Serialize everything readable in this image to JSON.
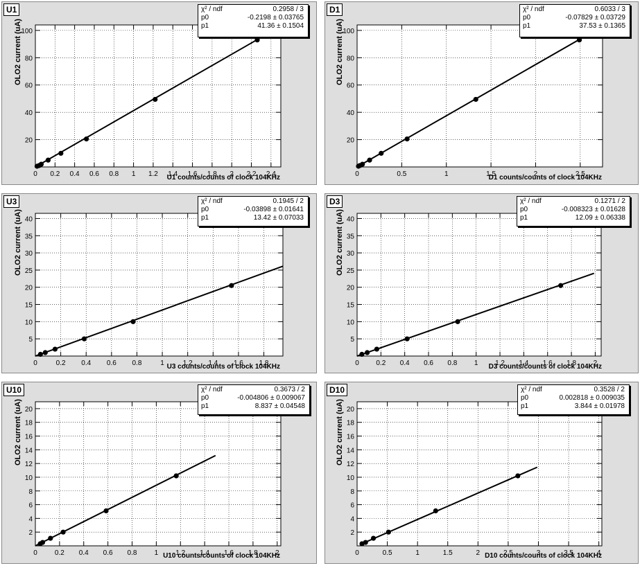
{
  "chart_data": [
    {
      "type": "scatter",
      "name": "U1",
      "ylabel": "OLO2 current (uA)",
      "xlabel": "U1 counts/counts of clock 104KHz",
      "xlim": [
        0,
        2.5
      ],
      "ylim": [
        0,
        104
      ],
      "xticks": [
        "0",
        "0.2",
        "0.4",
        "0.6",
        "0.8",
        "1",
        "1.2",
        "1.4",
        "1.6",
        "1.8",
        "2",
        "2.2",
        "2.4"
      ],
      "xtick_values": [
        0,
        0.2,
        0.4,
        0.6,
        0.8,
        1,
        1.2,
        1.4,
        1.6,
        1.8,
        2,
        2.2,
        2.4
      ],
      "yticks": [
        "20",
        "40",
        "60",
        "80",
        "100"
      ],
      "ytick_values": [
        20,
        40,
        60,
        80,
        100
      ],
      "x": [
        0.017,
        0.037,
        0.06,
        0.13,
        0.26,
        0.52,
        1.22,
        2.26
      ],
      "y": [
        0.5,
        1,
        2,
        5,
        10,
        20.5,
        49.5,
        93
      ],
      "fit": {
        "p0": -0.2198,
        "p1": 41.36,
        "x_range": [
          0,
          2.26
        ]
      },
      "stats": {
        "chi2_label": "χ² / ndf",
        "chi2": "0.2958 / 3",
        "p0_label": "p0",
        "p0": "-0.2198 ± 0.03765",
        "p1_label": "p1",
        "p1": "41.36 ± 0.1504"
      },
      "grid": true
    },
    {
      "type": "scatter",
      "name": "D1",
      "ylabel": "OLO2 current (uA)",
      "xlabel": "D1 counts/counts of clock 104KHz",
      "xlim": [
        0,
        2.75
      ],
      "ylim": [
        0,
        104
      ],
      "xticks": [
        "0",
        "0.5",
        "1",
        "1.5",
        "2",
        "2.5"
      ],
      "xtick_values": [
        0,
        0.5,
        1,
        1.5,
        2,
        2.5
      ],
      "yticks": [
        "20",
        "40",
        "60",
        "80",
        "100"
      ],
      "ytick_values": [
        20,
        40,
        60,
        80,
        100
      ],
      "x": [
        0.015,
        0.03,
        0.06,
        0.14,
        0.27,
        0.56,
        1.33,
        2.49
      ],
      "y": [
        0.5,
        1,
        2,
        5,
        10,
        20.5,
        49.5,
        93
      ],
      "fit": {
        "p0": -0.07829,
        "p1": 37.53,
        "x_range": [
          0,
          2.49
        ]
      },
      "stats": {
        "chi2_label": "χ² / ndf",
        "chi2": "0.6033 / 3",
        "p0_label": "p0",
        "p0": "-0.07829 ± 0.03729",
        "p1_label": "p1",
        "p1": "37.53 ± 0.1365"
      },
      "grid": true
    },
    {
      "type": "scatter",
      "name": "U3",
      "ylabel": "OLO2 current (uA)",
      "xlabel": "U3 counts/counts of clock 104KHz",
      "xlim": [
        0,
        1.95
      ],
      "ylim": [
        0,
        41.5
      ],
      "xticks": [
        "0",
        "0.2",
        "0.4",
        "0.6",
        "0.8",
        "1",
        "1.2",
        "1.4",
        "1.6",
        "1.8"
      ],
      "xtick_values": [
        0,
        0.2,
        0.4,
        0.6,
        0.8,
        1,
        1.2,
        1.4,
        1.6,
        1.8
      ],
      "yticks": [
        "5",
        "10",
        "15",
        "20",
        "25",
        "30",
        "35",
        "40"
      ],
      "ytick_values": [
        5,
        10,
        15,
        20,
        25,
        30,
        35,
        40
      ],
      "x": [
        0.04,
        0.078,
        0.155,
        0.385,
        0.77,
        1.545
      ],
      "y": [
        0.5,
        1,
        2,
        5,
        10,
        20.5
      ],
      "fit": {
        "p0": -0.03898,
        "p1": 13.42,
        "x_range": [
          0,
          1.95
        ]
      },
      "stats": {
        "chi2_label": "χ² / ndf",
        "chi2": "0.1945 / 2",
        "p0_label": "p0",
        "p0": "-0.03898 ± 0.01641",
        "p1_label": "p1",
        "p1": "13.42 ± 0.07033"
      },
      "grid": true
    },
    {
      "type": "scatter",
      "name": "D3",
      "ylabel": "OLO2 current (uA)",
      "xlabel": "D3 counts/counts of clock 104KHz",
      "xlim": [
        0,
        2.05
      ],
      "ylim": [
        0,
        41.5
      ],
      "xticks": [
        "0",
        "0.2",
        "0.4",
        "0.6",
        "0.8",
        "1",
        "1.2",
        "1.4",
        "1.6",
        "1.8",
        "2"
      ],
      "xtick_values": [
        0,
        0.2,
        0.4,
        0.6,
        0.8,
        1,
        1.2,
        1.4,
        1.6,
        1.8,
        2
      ],
      "yticks": [
        "5",
        "10",
        "15",
        "20",
        "25",
        "30",
        "35",
        "40"
      ],
      "ytick_values": [
        5,
        10,
        15,
        20,
        25,
        30,
        35,
        40
      ],
      "x": [
        0.04,
        0.085,
        0.165,
        0.42,
        0.845,
        1.71
      ],
      "y": [
        0.5,
        1,
        2,
        5,
        10,
        20.5
      ],
      "fit": {
        "p0": -0.008323,
        "p1": 12.09,
        "x_range": [
          0,
          1.99
        ]
      },
      "stats": {
        "chi2_label": "χ² / ndf",
        "chi2": "0.1271 / 2",
        "p0_label": "p0",
        "p0": "-0.008323 ± 0.01628",
        "p1_label": "p1",
        "p1": "12.09 ± 0.06338"
      },
      "grid": true
    },
    {
      "type": "scatter",
      "name": "U10",
      "ylabel": "OLO2 current (uA)",
      "xlabel": "U10 counts/counts of clock 104KHz",
      "xlim": [
        0,
        2.03
      ],
      "ylim": [
        0,
        21
      ],
      "xticks": [
        "0",
        "0.2",
        "0.4",
        "0.6",
        "0.8",
        "1",
        "1.2",
        "1.4",
        "1.6",
        "1.8",
        "2"
      ],
      "xtick_values": [
        0,
        0.2,
        0.4,
        0.6,
        0.8,
        1,
        1.2,
        1.4,
        1.6,
        1.8,
        2
      ],
      "yticks": [
        "2",
        "4",
        "6",
        "8",
        "10",
        "12",
        "14",
        "16",
        "18",
        "20"
      ],
      "ytick_values": [
        2,
        4,
        6,
        8,
        10,
        12,
        14,
        16,
        18,
        20
      ],
      "x": [
        0.04,
        0.06,
        0.125,
        0.23,
        0.585,
        1.165
      ],
      "y": [
        0.3,
        0.5,
        1.1,
        2,
        5.1,
        10.2
      ],
      "fit": {
        "p0": -0.004806,
        "p1": 8.837,
        "x_range": [
          0,
          1.49
        ]
      },
      "stats": {
        "chi2_label": "χ² / ndf",
        "chi2": "0.3673 / 2",
        "p0_label": "p0",
        "p0": "-0.004806 ± 0.009067",
        "p1_label": "p1",
        "p1": "8.837 ± 0.04548"
      },
      "grid": true
    },
    {
      "type": "scatter",
      "name": "D10",
      "ylabel": "OLO2 current (uA)",
      "xlabel": "D10 counts/counts of clock 104KHz",
      "xlim": [
        0,
        4.05
      ],
      "ylim": [
        0,
        21
      ],
      "xticks": [
        "0",
        "0.5",
        "1",
        "1.5",
        "2",
        "2.5",
        "3",
        "3.5",
        "4"
      ],
      "xtick_values": [
        0,
        0.5,
        1,
        1.5,
        2,
        2.5,
        3,
        3.5,
        4
      ],
      "yticks": [
        "2",
        "4",
        "6",
        "8",
        "10",
        "12",
        "14",
        "16",
        "18",
        "20"
      ],
      "ytick_values": [
        2,
        4,
        6,
        8,
        10,
        12,
        14,
        16,
        18,
        20
      ],
      "x": [
        0.08,
        0.14,
        0.27,
        0.52,
        1.3,
        2.66
      ],
      "y": [
        0.3,
        0.5,
        1.1,
        2,
        5.1,
        10.2
      ],
      "fit": {
        "p0": 0.002818,
        "p1": 3.844,
        "x_range": [
          0.08,
          2.98
        ]
      },
      "stats": {
        "chi2_label": "χ² / ndf",
        "chi2": "0.3528 / 2",
        "p0_label": "p0",
        "p0": "0.002818 ± 0.009035",
        "p1_label": "p1",
        "p1": "3.844 ± 0.01978"
      },
      "grid": true
    }
  ]
}
